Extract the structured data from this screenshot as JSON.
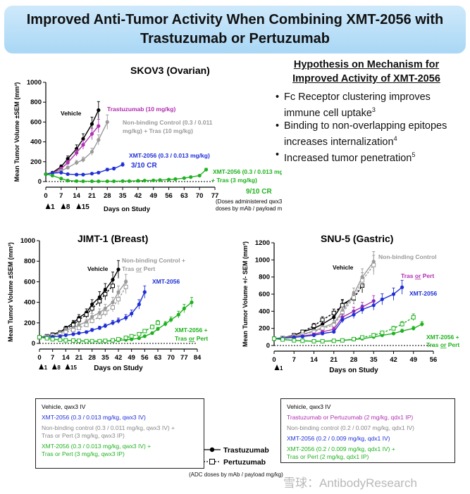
{
  "header": {
    "title_line1": "Improved Anti-Tumor Activity When Combining XMT-2056 with",
    "title_line2": "Trastuzumab or Pertuzumab"
  },
  "hypothesis": {
    "title_line1": "Hypothesis on Mechanism for",
    "title_line2": "Improved Activity of XMT-2056",
    "bullets": [
      {
        "text": "Fc Receptor clustering improves immune cell uptake",
        "sup": "3"
      },
      {
        "text": "Binding to non-overlapping epitopes increases internalization",
        "sup": "4"
      },
      {
        "text": "Increased tumor penetration",
        "sup": "5"
      }
    ]
  },
  "colors": {
    "vehicle": "#000000",
    "tras": "#b02fb0",
    "nonbinding": "#9a9a9a",
    "xmt": "#1f2fd6",
    "combo": "#1fb21f"
  },
  "chart_data": [
    {
      "id": "skov3",
      "type": "line",
      "title": "SKOV3 (Ovarian)",
      "ylabel": "Mean Tumor Volume ±SEM (mm³)",
      "xlabel": "Days on Study",
      "xlim": [
        0,
        77
      ],
      "ylim": [
        0,
        1000
      ],
      "xticks": [
        0,
        7,
        14,
        21,
        28,
        35,
        42,
        49,
        56,
        63,
        70,
        77
      ],
      "yticks": [
        0,
        200,
        400,
        600,
        800,
        1000
      ],
      "dosing_marks": [
        "1",
        "8",
        "15"
      ],
      "note_line1": "(Doses administered qwx3;",
      "note_line2": "doses by mAb / payload mg/kg)",
      "series": [
        {
          "name": "Vehicle",
          "color": "#000000",
          "x": [
            0,
            3,
            7,
            10,
            14,
            17,
            21,
            24
          ],
          "y": [
            75,
            90,
            150,
            230,
            330,
            430,
            580,
            720
          ]
        },
        {
          "name": "Trastuzumab (10 mg/kg)",
          "color": "#b02fb0",
          "x": [
            0,
            3,
            7,
            10,
            14,
            17,
            21,
            24
          ],
          "y": [
            75,
            85,
            130,
            190,
            290,
            370,
            480,
            560
          ]
        },
        {
          "name": "Non-binding Control (0.3 / 0.011 mg/kg) + Tras (10 mg/kg)",
          "color": "#9a9a9a",
          "x": [
            0,
            3,
            7,
            10,
            14,
            17,
            21,
            24,
            28
          ],
          "y": [
            75,
            85,
            110,
            140,
            190,
            220,
            300,
            420,
            600
          ]
        },
        {
          "name": "XMT-2056 (0.3 / 0.013 mg/kg)",
          "color": "#1f2fd6",
          "x": [
            0,
            3,
            7,
            10,
            14,
            17,
            21,
            24,
            28,
            31,
            35
          ],
          "y": [
            75,
            85,
            90,
            75,
            70,
            70,
            80,
            90,
            120,
            130,
            170
          ]
        },
        {
          "name": "XMT-2056 (0.3 / 0.013 mg/kg) + Tras (3 mg/kg)",
          "color": "#1fb21f",
          "x": [
            0,
            3,
            7,
            10,
            14,
            17,
            21,
            24,
            28,
            31,
            35,
            38,
            42,
            45,
            49,
            52,
            56,
            59,
            63,
            66,
            70,
            73
          ],
          "y": [
            75,
            60,
            30,
            10,
            5,
            3,
            3,
            3,
            3,
            3,
            5,
            5,
            8,
            10,
            12,
            15,
            20,
            25,
            35,
            45,
            60,
            120
          ]
        }
      ],
      "labels": [
        "Vehicle",
        "Trastuzumab (10 mg/kg)",
        "Non-binding Control (0.3 / 0.011",
        "mg/kg) + Tras (10 mg/kg)",
        "XMT-2056 (0.3 / 0.013 mg/kg)",
        "3/10 CR",
        "XMT-2056 (0.3 / 0.013 mg/kg)",
        "+ Tras (3 mg/kg)",
        "9/10 CR"
      ]
    },
    {
      "id": "jimt1",
      "type": "line",
      "title": "JIMT-1 (Breast)",
      "ylabel": "Mean Tumor Volume ±SEM (mm³)",
      "xlabel": "Days on Study",
      "xlim": [
        0,
        84
      ],
      "ylim": [
        0,
        1000
      ],
      "xticks": [
        0,
        7,
        14,
        21,
        28,
        35,
        42,
        49,
        56,
        63,
        70,
        77,
        84
      ],
      "yticks": [
        0,
        200,
        400,
        600,
        800,
        1000
      ],
      "dosing_marks": [
        "1",
        "8",
        "15"
      ],
      "series": [
        {
          "name": "Vehicle",
          "color": "#000000",
          "x": [
            0,
            4,
            7,
            11,
            14,
            18,
            21,
            25,
            28,
            32,
            35,
            39,
            42
          ],
          "y": [
            60,
            70,
            90,
            110,
            150,
            200,
            250,
            300,
            380,
            450,
            520,
            620,
            720
          ]
        },
        {
          "name": "Vehicle Pertuzumab",
          "color": "#000000",
          "open": true,
          "x": [
            0,
            4,
            7,
            11,
            14,
            18,
            21,
            25,
            28,
            32,
            35,
            39
          ],
          "y": [
            60,
            70,
            85,
            105,
            140,
            180,
            230,
            280,
            340,
            410,
            480,
            560
          ]
        },
        {
          "name": "Non-binding Control + Tras",
          "color": "#9a9a9a",
          "x": [
            0,
            4,
            7,
            11,
            14,
            18,
            21,
            25,
            28,
            32,
            35,
            39,
            42,
            46
          ],
          "y": [
            60,
            65,
            80,
            100,
            130,
            150,
            180,
            210,
            260,
            300,
            340,
            400,
            500,
            600
          ]
        },
        {
          "name": "Non-binding Control + Pert",
          "color": "#9a9a9a",
          "open": true,
          "x": [
            0,
            4,
            7,
            11,
            14,
            18,
            21,
            25,
            28,
            32,
            35,
            39,
            42,
            46
          ],
          "y": [
            60,
            65,
            75,
            90,
            110,
            130,
            150,
            180,
            220,
            260,
            300,
            350,
            430,
            550
          ]
        },
        {
          "name": "XMT-2056",
          "color": "#1f2fd6",
          "x": [
            0,
            4,
            7,
            11,
            14,
            18,
            21,
            25,
            28,
            32,
            35,
            39,
            42,
            46,
            49,
            53,
            56
          ],
          "y": [
            60,
            60,
            65,
            70,
            80,
            90,
            100,
            110,
            130,
            150,
            170,
            200,
            220,
            250,
            290,
            380,
            500
          ]
        },
        {
          "name": "XMT-2056 + Tras",
          "color": "#1fb21f",
          "x": [
            0,
            4,
            7,
            11,
            14,
            18,
            21,
            25,
            28,
            32,
            35,
            39,
            42,
            46,
            49,
            53,
            56,
            60,
            63,
            67,
            70,
            74,
            77,
            81
          ],
          "y": [
            60,
            50,
            40,
            35,
            30,
            28,
            25,
            22,
            20,
            20,
            22,
            25,
            30,
            35,
            40,
            50,
            70,
            100,
            140,
            190,
            230,
            280,
            340,
            400
          ]
        },
        {
          "name": "XMT-2056 + Pert",
          "color": "#1fb21f",
          "open": true,
          "x": [
            0,
            4,
            7,
            11,
            14,
            18,
            21,
            25,
            28,
            32,
            35,
            39,
            42,
            46,
            49,
            53,
            56,
            60,
            63
          ],
          "y": [
            60,
            50,
            40,
            35,
            30,
            28,
            25,
            22,
            22,
            22,
            25,
            30,
            40,
            55,
            70,
            90,
            120,
            160,
            200
          ]
        }
      ],
      "labels": [
        "Vehicle",
        "Non-binding Control +",
        "Tras or Pert",
        "XMT-2056",
        "XMT-2056 +",
        "Tras or Pert"
      ]
    },
    {
      "id": "snu5",
      "type": "line",
      "title": "SNU-5 (Gastric)",
      "ylabel": "Mean Tumor Volume +/- SEM (mm³)",
      "xlabel": "Days on Study",
      "xlim": [
        0,
        56
      ],
      "ylim": [
        0,
        1200
      ],
      "xticks": [
        0,
        7,
        14,
        21,
        28,
        35,
        42,
        49,
        56
      ],
      "yticks": [
        0,
        200,
        400,
        600,
        800,
        1000,
        1200
      ],
      "dosing_marks": [
        "1"
      ],
      "series": [
        {
          "name": "Vehicle",
          "color": "#000000",
          "x": [
            0,
            3,
            7,
            10,
            14,
            17,
            21,
            24,
            28
          ],
          "y": [
            80,
            90,
            120,
            160,
            200,
            250,
            330,
            480,
            560
          ]
        },
        {
          "name": "Vehicle Pertuzumab",
          "color": "#000000",
          "open": true,
          "x": [
            0,
            3,
            7,
            10,
            14,
            17,
            21,
            24,
            28,
            31
          ],
          "y": [
            80,
            90,
            120,
            160,
            230,
            300,
            380,
            470,
            550,
            700
          ]
        },
        {
          "name": "Non-binding Control",
          "color": "#9a9a9a",
          "x": [
            0,
            3,
            7,
            10,
            14,
            17,
            21,
            24,
            28,
            31,
            35
          ],
          "y": [
            80,
            90,
            110,
            130,
            170,
            210,
            260,
            400,
            600,
            800,
            980
          ]
        },
        {
          "name": "Non-binding Control Pert",
          "color": "#9a9a9a",
          "open": true,
          "x": [
            0,
            3,
            7,
            10,
            14,
            17,
            21,
            24,
            28,
            31,
            35
          ],
          "y": [
            80,
            90,
            105,
            125,
            160,
            200,
            240,
            380,
            560,
            760,
            940
          ]
        },
        {
          "name": "Tras or Pert",
          "color": "#b02fb0",
          "x": [
            0,
            3,
            7,
            10,
            14,
            17,
            21,
            24,
            28,
            31,
            35
          ],
          "y": [
            80,
            85,
            100,
            110,
            130,
            160,
            190,
            330,
            400,
            450,
            520
          ]
        },
        {
          "name": "XMT-2056",
          "color": "#1f2fd6",
          "x": [
            0,
            3,
            7,
            10,
            14,
            17,
            21,
            24,
            28,
            31,
            35,
            38,
            42,
            45
          ],
          "y": [
            80,
            85,
            95,
            105,
            120,
            140,
            160,
            300,
            360,
            420,
            470,
            540,
            600,
            680
          ]
        },
        {
          "name": "XMT-2056 + Tras",
          "color": "#1fb21f",
          "x": [
            0,
            3,
            7,
            10,
            14,
            17,
            21,
            24,
            28,
            31,
            35,
            38,
            42,
            45,
            49,
            52
          ],
          "y": [
            80,
            70,
            60,
            55,
            50,
            50,
            55,
            60,
            70,
            80,
            100,
            120,
            140,
            170,
            200,
            250
          ]
        },
        {
          "name": "XMT-2056 + Pert",
          "color": "#1fb21f",
          "open": true,
          "x": [
            0,
            3,
            7,
            10,
            14,
            17,
            21,
            24,
            28,
            31,
            35,
            38,
            42,
            45,
            49
          ],
          "y": [
            80,
            70,
            60,
            55,
            50,
            50,
            55,
            60,
            75,
            95,
            120,
            150,
            200,
            250,
            330
          ]
        }
      ],
      "labels": [
        "Vehicle",
        "Non-binding Control",
        "Tras or Pert",
        "XMT-2056",
        "XMT-2056 +",
        "Tras or Pert"
      ]
    }
  ],
  "legends": {
    "left": {
      "items": [
        {
          "text": "Vehicle, qwx3  IV",
          "color": "#000000"
        },
        {
          "text": "XMT-2056  (0.3 / 0.013 mg/kg, qwx3 IV)",
          "color": "#1f2fd6"
        },
        {
          "text": "Non-binding control (0.3 / 0.011 mg/kg, qwx3  IV) +",
          "color": "#888888"
        },
        {
          "text": "Tras or Pert (3 mg/kg, qwx3 IP)",
          "color": "#888888"
        },
        {
          "text": "XMT-2056 (0.3 / 0.013 mg/kg, qwx3 IV) +",
          "color": "#1fb21f"
        },
        {
          "text": "Tras or Pert (3 mg/kg, qwx3 IP)",
          "color": "#1fb21f"
        }
      ]
    },
    "right": {
      "items": [
        {
          "text": "Vehicle, qwx3  IV",
          "color": "#000000"
        },
        {
          "text": "Trastuzumab or Pertuzumab (2 mg/kg, qdx1 IP)",
          "color": "#b02fb0"
        },
        {
          "text": "Non-binding control (0.2 / 0.007 mg/kg, qdx1 IV)",
          "color": "#888888"
        },
        {
          "text": "XMT-2056  (0.2 / 0.009 mg/kg, qdx1 IV)",
          "color": "#1f2fd6"
        },
        {
          "text": "XMT-2056  (0.2 / 0.009 mg/kg, qdx1 IV) +",
          "color": "#1fb21f"
        },
        {
          "text": "Tras or Pert (2 mg/kg, qdx1 IP)",
          "color": "#1fb21f"
        }
      ]
    },
    "marker_legend": {
      "tras": "Trastuzumab",
      "pert": "Pertuzumab"
    },
    "adc_note": "(ADC doses by mAb / payload mg/kg)",
    "watermark": "雪球：AntibodyResearch"
  }
}
